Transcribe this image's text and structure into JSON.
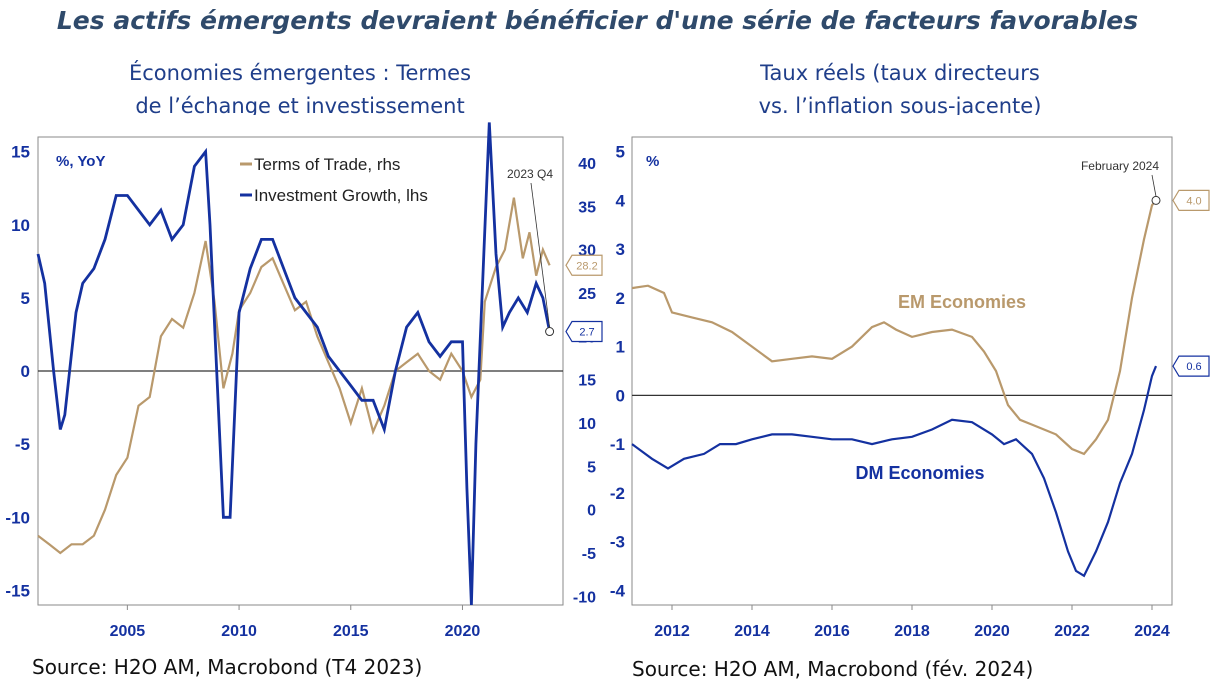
{
  "title": "Les actifs émergents devraient bénéficier d'une série de facteurs favorables",
  "left_panel": {
    "subtitle_line1": "Économies émergentes : Termes",
    "subtitle_line2": "de l’échange et investissement",
    "source": "Source: H2O AM, Macrobond (T4 2023)"
  },
  "right_panel": {
    "subtitle_line1": "Taux réels (taux directeurs",
    "subtitle_line2": "vs. l’inflation sous-jacente)",
    "source": "Source: H2O AM, Macrobond (fév. 2024)"
  },
  "colors": {
    "blue": "#1431a0",
    "tan": "#b9996c",
    "axis": "#8a8a8a",
    "zero": "#333333"
  },
  "chart_data": [
    {
      "type": "line",
      "unit_label": "%, YoY",
      "x_ticks": [
        "2005",
        "2010",
        "2015",
        "2020"
      ],
      "x_tick_values": [
        2005,
        2010,
        2015,
        2020
      ],
      "xlim": [
        2001,
        2024.5
      ],
      "ylim_left": [
        -16,
        16
      ],
      "ylim_right": [
        -11,
        43
      ],
      "y_ticks_left": [
        "-15",
        "-10",
        "-5",
        "0",
        "5",
        "10",
        "15"
      ],
      "y_tick_values_left": [
        -15,
        -10,
        -5,
        0,
        5,
        10,
        15
      ],
      "y_ticks_right": [
        "-10",
        "-5",
        "0",
        "5",
        "10",
        "15",
        "20",
        "25",
        "30",
        "35",
        "40"
      ],
      "y_tick_values_right": [
        -10,
        -5,
        0,
        5,
        10,
        15,
        20,
        25,
        30,
        35,
        40
      ],
      "annotation": "2023 Q4",
      "end_label_tan": "28.2",
      "end_label_blue": "2.7",
      "series": [
        {
          "name": "Terms of Trade, rhs",
          "axis": "right",
          "color": "#b9996c",
          "x": [
            2001.0,
            2001.5,
            2002.0,
            2002.5,
            2003.0,
            2003.5,
            2004.0,
            2004.5,
            2005.0,
            2005.5,
            2006.0,
            2006.5,
            2007.0,
            2007.5,
            2008.0,
            2008.5,
            2008.9,
            2009.3,
            2009.7,
            2010.0,
            2010.5,
            2011.0,
            2011.5,
            2012.0,
            2012.5,
            2013.0,
            2013.5,
            2014.0,
            2014.5,
            2015.0,
            2015.5,
            2016.0,
            2016.5,
            2017.0,
            2017.5,
            2018.0,
            2018.5,
            2019.0,
            2019.5,
            2020.0,
            2020.4,
            2020.8,
            2021.0,
            2021.5,
            2021.9,
            2022.3,
            2022.7,
            2023.0,
            2023.3,
            2023.6,
            2023.9
          ],
          "y": [
            -3,
            -4,
            -5,
            -4,
            -4,
            -3,
            0,
            4,
            6,
            12,
            13,
            20,
            22,
            21,
            25,
            31,
            24,
            14,
            18,
            23,
            25,
            28,
            29,
            26,
            23,
            24,
            20,
            17,
            14,
            10,
            14,
            9,
            12,
            16,
            17,
            18,
            16,
            15,
            18,
            16,
            13,
            15,
            24,
            28,
            30,
            36,
            29,
            32,
            27,
            30,
            28.2
          ]
        },
        {
          "name": "Investment Growth, lhs",
          "axis": "left",
          "color": "#1431a0",
          "x": [
            2001.0,
            2001.3,
            2001.7,
            2002.0,
            2002.2,
            2002.7,
            2003.0,
            2003.5,
            2004.0,
            2004.5,
            2005.0,
            2005.5,
            2006.0,
            2006.5,
            2007.0,
            2007.5,
            2008.0,
            2008.5,
            2008.7,
            2009.0,
            2009.3,
            2009.6,
            2010.0,
            2010.5,
            2011.0,
            2011.5,
            2012.0,
            2012.5,
            2013.0,
            2013.5,
            2014.0,
            2014.5,
            2015.0,
            2015.5,
            2016.0,
            2016.5,
            2017.0,
            2017.5,
            2018.0,
            2018.5,
            2019.0,
            2019.5,
            2020.0,
            2020.2,
            2020.4,
            2020.6,
            2020.9,
            2021.2,
            2021.5,
            2021.8,
            2022.1,
            2022.5,
            2022.9,
            2023.3,
            2023.6,
            2023.9
          ],
          "y": [
            8,
            6,
            0,
            -4,
            -3,
            4,
            6,
            7,
            9,
            12,
            12,
            11,
            10,
            11,
            9,
            10,
            14,
            15,
            10,
            0,
            -10,
            -10,
            4,
            7,
            9,
            9,
            7,
            5,
            4,
            3,
            1,
            0,
            -1,
            -2,
            -2,
            -4,
            0,
            3,
            4,
            2,
            1,
            2,
            2,
            -8,
            -16,
            -5,
            6,
            17,
            8,
            3,
            4,
            5,
            4,
            6,
            5,
            2.7
          ]
        }
      ]
    },
    {
      "type": "line",
      "unit_label": "%",
      "x_ticks": [
        "2012",
        "2014",
        "2016",
        "2018",
        "2020",
        "2022",
        "2024"
      ],
      "x_tick_values": [
        2012,
        2014,
        2016,
        2018,
        2020,
        2022,
        2024
      ],
      "xlim": [
        2011,
        2024.5
      ],
      "ylim": [
        -4.3,
        5.3
      ],
      "y_ticks": [
        "5",
        "4",
        "3",
        "2",
        "1",
        "0",
        "-1",
        "-2",
        "-3",
        "-4"
      ],
      "y_tick_values": [
        5,
        4,
        3,
        2,
        1,
        0,
        -1,
        -2,
        -3,
        -4
      ],
      "annotation": "February 2024",
      "end_label_tan": "4.0",
      "end_label_blue": "0.6",
      "series": [
        {
          "name": "EM Economies",
          "color": "#b9996c",
          "x": [
            2011.0,
            2011.4,
            2011.8,
            2012.0,
            2012.5,
            2013.0,
            2013.5,
            2014.0,
            2014.5,
            2015.0,
            2015.5,
            2016.0,
            2016.5,
            2017.0,
            2017.3,
            2017.6,
            2018.0,
            2018.5,
            2019.0,
            2019.5,
            2019.8,
            2020.1,
            2020.4,
            2020.7,
            2021.0,
            2021.3,
            2021.6,
            2022.0,
            2022.3,
            2022.6,
            2022.9,
            2023.2,
            2023.5,
            2023.8,
            2024.0,
            2024.1
          ],
          "y": [
            2.2,
            2.25,
            2.1,
            1.7,
            1.6,
            1.5,
            1.3,
            1.0,
            0.7,
            0.75,
            0.8,
            0.75,
            1.0,
            1.4,
            1.5,
            1.35,
            1.2,
            1.3,
            1.35,
            1.2,
            0.9,
            0.5,
            -0.2,
            -0.5,
            -0.6,
            -0.7,
            -0.8,
            -1.1,
            -1.2,
            -0.9,
            -0.5,
            0.5,
            2.0,
            3.2,
            3.9,
            4.0
          ]
        },
        {
          "name": "DM Economies",
          "color": "#1431a0",
          "x": [
            2011.0,
            2011.5,
            2011.9,
            2012.3,
            2012.8,
            2013.2,
            2013.6,
            2014.0,
            2014.5,
            2015.0,
            2015.5,
            2016.0,
            2016.5,
            2017.0,
            2017.5,
            2018.0,
            2018.5,
            2019.0,
            2019.5,
            2020.0,
            2020.3,
            2020.6,
            2021.0,
            2021.3,
            2021.6,
            2021.9,
            2022.1,
            2022.3,
            2022.6,
            2022.9,
            2023.2,
            2023.5,
            2023.8,
            2024.0,
            2024.1
          ],
          "y": [
            -1.0,
            -1.3,
            -1.5,
            -1.3,
            -1.2,
            -1.0,
            -1.0,
            -0.9,
            -0.8,
            -0.8,
            -0.85,
            -0.9,
            -0.9,
            -1.0,
            -0.9,
            -0.85,
            -0.7,
            -0.5,
            -0.55,
            -0.8,
            -1.0,
            -0.9,
            -1.2,
            -1.7,
            -2.4,
            -3.2,
            -3.6,
            -3.7,
            -3.2,
            -2.6,
            -1.8,
            -1.2,
            -0.3,
            0.4,
            0.6
          ]
        }
      ]
    }
  ]
}
